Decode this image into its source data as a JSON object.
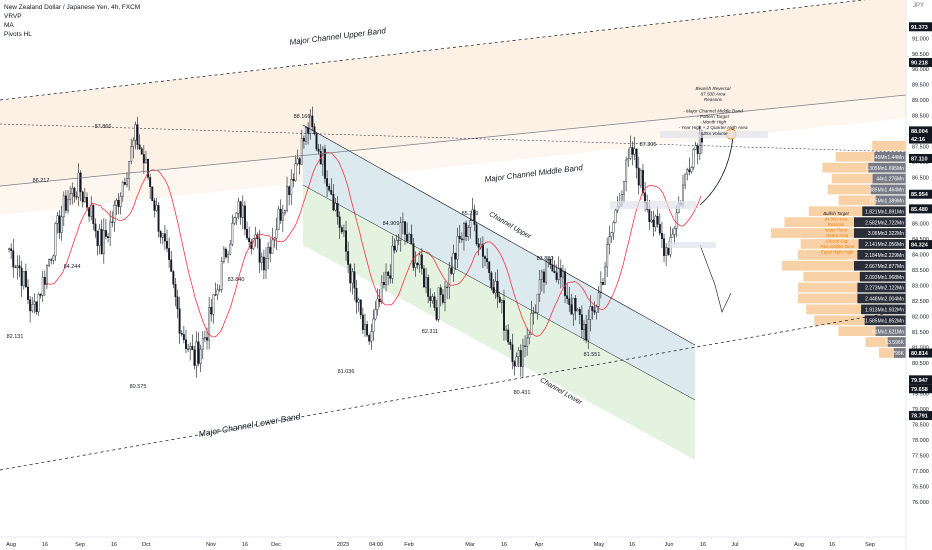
{
  "header": {
    "symbol_line": "New Zealand Dollar / Japanese Yen, 4h, FXCM",
    "indicators": [
      "VRVP",
      "MA",
      "Pivots HL"
    ],
    "currency": "JPY"
  },
  "chart_data": {
    "type": "line",
    "title": "New Zealand Dollar / Japanese Yen, 4h, FXCM",
    "xlabel": "",
    "ylabel": "",
    "ylim": [
      75.6,
      91.6
    ],
    "x_ticks": [
      "Aug",
      "16",
      "Sep",
      "16",
      "Oct",
      "Nov",
      "16",
      "Dec",
      "2023",
      "04:00",
      "Feb",
      "Mar",
      "16",
      "Apr",
      "May",
      "16",
      "Jun",
      "16",
      "Jul",
      "Aug",
      "16",
      "Sep"
    ],
    "y_ticks": [
      76.0,
      76.5,
      77.0,
      77.5,
      78.0,
      78.5,
      79.0,
      79.5,
      80.0,
      80.5,
      81.0,
      81.5,
      82.0,
      82.5,
      83.0,
      83.5,
      84.0,
      84.5,
      85.0,
      85.5,
      86.0,
      86.5,
      87.0,
      87.5,
      88.0,
      88.5,
      89.0,
      89.5,
      90.0,
      90.5,
      91.0
    ],
    "y_tick_labels": [
      "76.000",
      "76.500",
      "77.000",
      "77.500",
      "78.000",
      "78.500",
      "79.000",
      "79.500",
      "80.000",
      "80.500",
      "81.000",
      "81.500",
      "82.000",
      "82.500",
      "83.000",
      "83.500",
      "84.000",
      "84.500",
      "85.000",
      "85.500",
      "86.000",
      "86.500",
      "87.000",
      "87.500",
      "88.000",
      "88.500",
      "89.000",
      "89.500",
      "90.000",
      "90.500",
      "91.000"
    ],
    "series": [
      {
        "values": [
          84.2,
          83.5,
          82.13,
          83.2,
          84.6,
          85.8,
          86.22,
          85.5,
          84.24,
          85.2,
          86.6,
          87.87,
          86.6,
          85.0,
          83.2,
          81.5,
          80.58,
          81.4,
          82.8,
          84.5,
          85.5,
          84.6,
          83.84,
          84.8,
          86.0,
          87.2,
          88.17,
          87.3,
          86.0,
          84.4,
          82.6,
          81.04,
          82.3,
          83.6,
          84.91,
          84.0,
          83.2,
          82.31,
          83.3,
          84.4,
          85.22,
          84.2,
          83.1,
          81.7,
          80.43,
          81.6,
          82.9,
          83.88,
          83.0,
          82.1,
          81.55,
          82.6,
          84.4,
          86.2,
          87.31,
          86.0,
          84.8,
          84.2,
          85.6,
          87.2,
          88.0
        ]
      }
    ],
    "pivots": [
      {
        "label": "87.866",
        "value": 87.866
      },
      {
        "label": "86.217",
        "value": 86.217
      },
      {
        "label": "84.244",
        "value": 84.244
      },
      {
        "label": "82.131",
        "value": 82.131
      },
      {
        "label": "80.575",
        "value": 80.575
      },
      {
        "label": "83.840",
        "value": 83.84
      },
      {
        "label": "88.166",
        "value": 88.166
      },
      {
        "label": "81.036",
        "value": 81.036
      },
      {
        "label": "84.909",
        "value": 84.909
      },
      {
        "label": "82.311",
        "value": 82.311
      },
      {
        "label": "85.219",
        "value": 85.219
      },
      {
        "label": "80.431",
        "value": 80.431
      },
      {
        "label": "83.880",
        "value": 83.88
      },
      {
        "label": "81.551",
        "value": 81.551
      },
      {
        "label": "87.305",
        "value": 87.305
      }
    ],
    "annotations": {
      "major_upper": "Major Channel Upper Band",
      "major_middle": "Major Channel Middle Band",
      "major_lower": "Major Channel Lower Band",
      "channel_upper": "Channel Upper",
      "channel_lower": "Channel Lower",
      "note_lines": [
        "Bearish Reversal",
        "87.500 Area",
        "Reasons",
        "",
        "- Major Channel Middle Band",
        "- Pattern Target",
        "- Month High",
        "- Year High + 2 Quarter High Area",
        "- Ultra Volume"
      ],
      "small_notes": [
        "Bullish Target",
        "84.950 Area",
        "Reasons",
        "Major Trend",
        "- Retest Area",
        "- Closed Gap",
        "- Fibo Golden Zone",
        "- Equal Highs High"
      ]
    },
    "price_tags": [
      {
        "label": "91.373",
        "value": 91.373,
        "color": "#131722"
      },
      {
        "label": "90.218",
        "value": 90.218,
        "color": "#131722"
      },
      {
        "label": "88.004",
        "value": 88.004,
        "color": "#131722"
      },
      {
        "label": "42:16",
        "value": 87.74,
        "color": "#131722"
      },
      {
        "label": "87.110",
        "value": 87.11,
        "color": "#131722"
      },
      {
        "label": "85.954",
        "value": 85.954,
        "color": "#131722"
      },
      {
        "label": "85.480",
        "value": 85.48,
        "color": "#131722"
      },
      {
        "label": "84.324",
        "value": 84.324,
        "color": "#131722"
      },
      {
        "label": "80.814",
        "value": 80.814,
        "color": "#131722"
      },
      {
        "label": "79.947",
        "value": 79.947,
        "color": "#131722"
      },
      {
        "label": "79.658",
        "value": 79.658,
        "color": "#131722"
      },
      {
        "label": "78.791",
        "value": 78.791,
        "color": "#131722"
      }
    ],
    "volume_profile": [
      {
        "label": "",
        "value": 0.25,
        "bold": false
      },
      {
        "label": "1.45Mn1.44Mn",
        "value": 0.52,
        "bold": false
      },
      {
        "label": "1.305Mn1.695Mn",
        "value": 0.62,
        "bold": false
      },
      {
        "label": "44n1.276Mn",
        "value": 0.55,
        "bold": false
      },
      {
        "label": "385Mn1.464Mn",
        "value": 0.58,
        "bold": false
      },
      {
        "label": "725Mn1.389Mn",
        "value": 0.5,
        "bold": false
      },
      {
        "label": "1.821Mn1.891Mn",
        "value": 0.72,
        "bold": true
      },
      {
        "label": "2.582Mn2.722Mn",
        "value": 0.9,
        "bold": true
      },
      {
        "label": "3.06Mn3.322Mn",
        "value": 1.0,
        "bold": true
      },
      {
        "label": "2.141Mn2.056Mn",
        "value": 0.78,
        "bold": true
      },
      {
        "label": "2.184Mn2.229Mn",
        "value": 0.8,
        "bold": true
      },
      {
        "label": "2.667Mn2.877Mn",
        "value": 0.92,
        "bold": true
      },
      {
        "label": "2.093Mn1.968Mn",
        "value": 0.76,
        "bold": true
      },
      {
        "label": "2.273Mn2.122Mn",
        "value": 0.8,
        "bold": true
      },
      {
        "label": "2.448Mn2.004Mn",
        "value": 0.8,
        "bold": true
      },
      {
        "label": "1.913Mn1.932Mn",
        "value": 0.74,
        "bold": true
      },
      {
        "label": "1.585Mn1.852Mn",
        "value": 0.68,
        "bold": true
      },
      {
        "label": "41Mn1.621Mn",
        "value": 0.5,
        "bold": false
      },
      {
        "label": "13.596K",
        "value": 0.3,
        "bold": false
      },
      {
        "label": "796K",
        "value": 0.2,
        "bold": false
      }
    ]
  },
  "colors": {
    "bull_candle": "#131722",
    "ma": "#f23645",
    "major_channel_fill": "#fdf1e5",
    "channel_upper_fill": "#dceaf0",
    "channel_lower_fill": "#e3f3e0",
    "volume_up": "#f7c996",
    "volume_down": "#5d606b"
  }
}
